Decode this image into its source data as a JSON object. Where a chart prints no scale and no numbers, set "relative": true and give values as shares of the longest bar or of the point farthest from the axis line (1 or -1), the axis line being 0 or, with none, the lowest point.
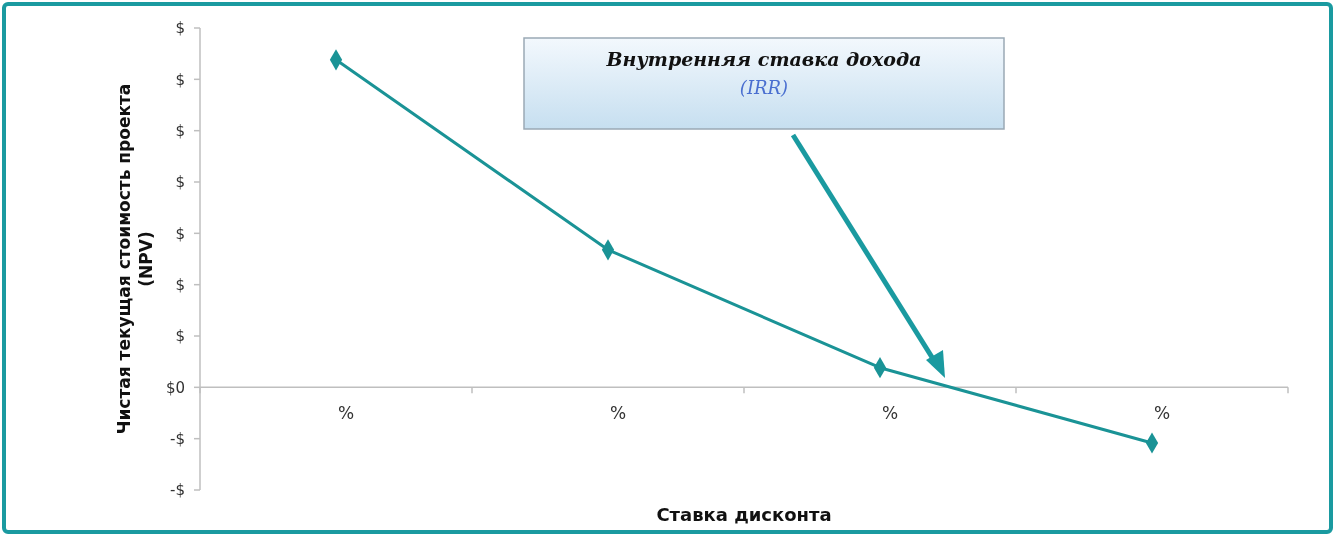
{
  "chart_data": {
    "type": "line",
    "relative": true,
    "xlabel": "Ставка дисконта",
    "ylabel": "Чистая текущая стоимость проекта (NPV)",
    "categories": [
      "%",
      "%",
      "%",
      "%"
    ],
    "series": [
      {
        "color": "#1a9396",
        "values": [
          1,
          0.42,
          0.06,
          -0.17
        ]
      }
    ],
    "marker": "diamond",
    "line_style": "solid",
    "annotations": [
      "Внутренняя ставка дохода",
      "(IRR)",
      "$",
      "$",
      "$",
      "$",
      "$",
      "$",
      "$",
      "$0",
      "-$",
      "-$"
    ]
  }
}
